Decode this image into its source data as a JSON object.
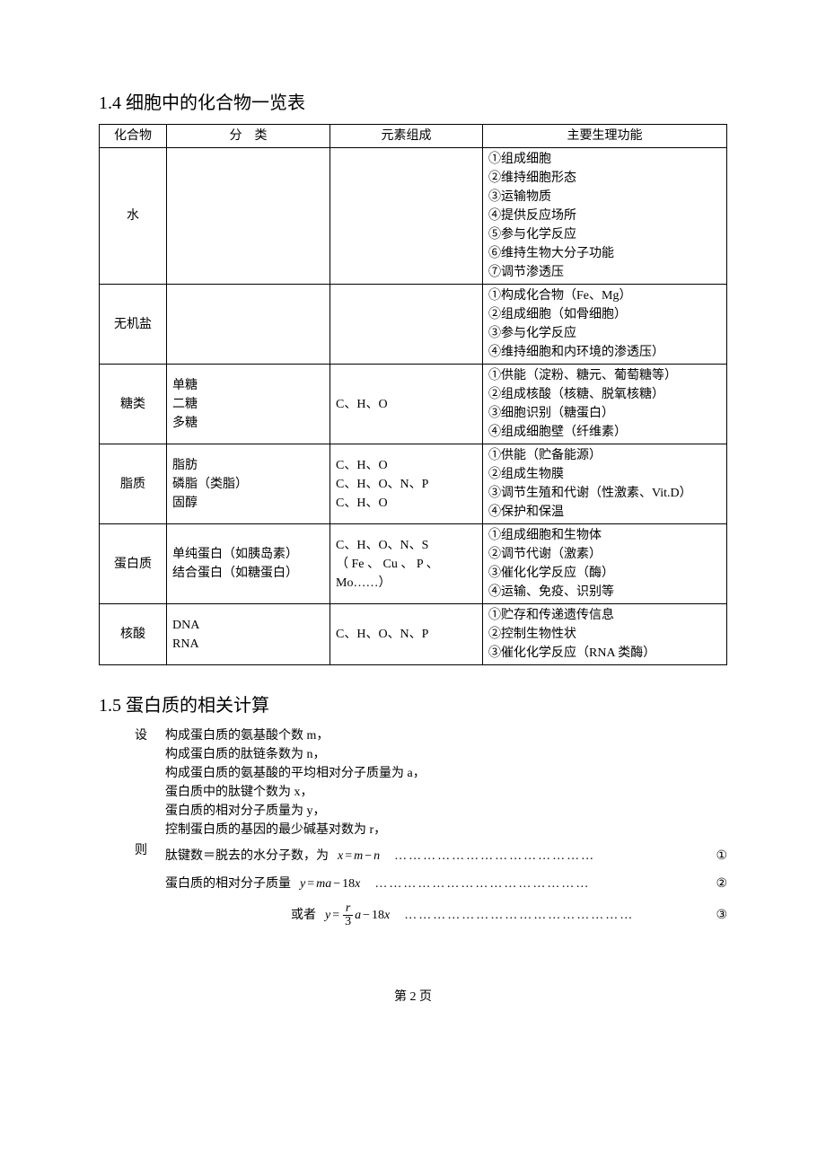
{
  "section1": {
    "title": "1.4 细胞中的化合物一览表",
    "headers": [
      "化合物",
      "分　类",
      "元素组成",
      "主要生理功能"
    ],
    "rows": [
      {
        "compound": "水",
        "category": "",
        "elements": "",
        "functions": [
          "①组成细胞",
          "②维持细胞形态",
          "③运输物质",
          "④提供反应场所",
          "⑤参与化学反应",
          "⑥维持生物大分子功能",
          "⑦调节渗透压"
        ]
      },
      {
        "compound": "无机盐",
        "category": "",
        "elements": "",
        "functions": [
          "①构成化合物（Fe、Mg）",
          "②组成细胞（如骨细胞）",
          "③参与化学反应",
          "④维持细胞和内环境的渗透压）"
        ]
      },
      {
        "compound": "糖类",
        "category": "单糖\n二糖\n多糖",
        "elements": "C、H、O",
        "functions": [
          "①供能（淀粉、糖元、葡萄糖等）",
          "②组成核酸（核糖、脱氧核糖）",
          "③细胞识别（糖蛋白）",
          "④组成细胞壁（纤维素）"
        ]
      },
      {
        "compound": "脂质",
        "category": "脂肪\n磷脂（类脂）\n固醇",
        "elements": "C、H、O\nC、H、O、N、P\nC、H、O",
        "functions": [
          "①供能（贮备能源）",
          "②组成生物膜",
          "③调节生殖和代谢（性激素、Vit.D）",
          "④保护和保温"
        ]
      },
      {
        "compound": "蛋白质",
        "category": "单纯蛋白（如胰岛素）\n结合蛋白（如糖蛋白）",
        "elements": "C、H、O、N、S\n（ Fe 、 Cu 、 P 、Mo……）",
        "functions": [
          "①组成细胞和生物体",
          "②调节代谢（激素）",
          "③催化化学反应（酶）",
          "④运输、免疫、识别等"
        ]
      },
      {
        "compound": "核酸",
        "category": "DNA\nRNA",
        "elements": "C、H、O、N、P",
        "functions": [
          "①贮存和传递遗传信息",
          "②控制生物性状",
          "③催化化学反应（RNA 类酶）"
        ]
      }
    ]
  },
  "section2": {
    "title": "1.5 蛋白质的相关计算",
    "set_label": "设",
    "set_lines": [
      "构成蛋白质的氨基酸个数 m，",
      "构成蛋白质的肽链条数为 n，",
      "构成蛋白质的氨基酸的平均相对分子质量为 a，",
      "蛋白质中的肽键个数为 x，",
      "蛋白质的相对分子质量为 y，",
      "控制蛋白质的基因的最少碱基对数为 r，"
    ],
    "then_label": "则",
    "eq1_prefix": "肽键数＝脱去的水分子数，为",
    "eq1_num": "①",
    "eq2_prefix": "蛋白质的相对分子质量",
    "eq2_num": "②",
    "eq3_prefix": "或者",
    "eq3_num": "③"
  },
  "page_number": "第 2 页",
  "style": {
    "font_size_body": 14,
    "font_size_heading": 20,
    "border_color": "#000000",
    "background_color": "#ffffff",
    "text_color": "#000000"
  }
}
